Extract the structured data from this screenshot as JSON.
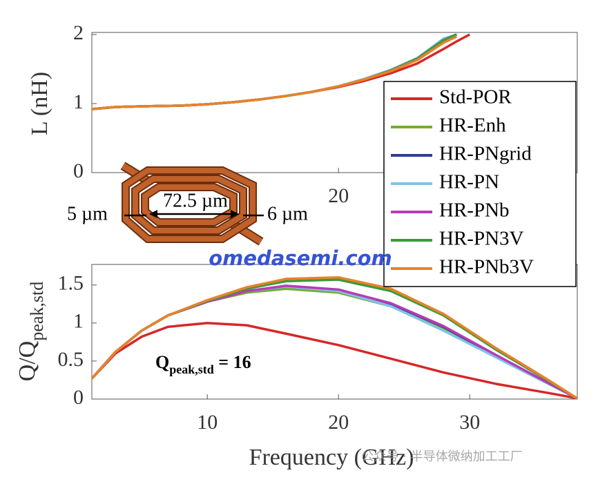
{
  "chart_data": [
    {
      "type": "line",
      "ylabel": "L (nH)",
      "x": [
        1.2,
        3,
        5,
        8,
        10,
        12,
        14,
        16,
        18,
        20,
        22,
        24,
        26,
        28,
        29,
        30
      ],
      "xlim": [
        1.2,
        38.2
      ],
      "xticks": [
        20
      ],
      "ylim": [
        0,
        2.03
      ],
      "yticks": [
        0,
        1,
        2
      ],
      "legend": "upper right",
      "series": [
        {
          "name": "Std-POR",
          "color": "#d62728",
          "values": [
            0.92,
            0.95,
            0.96,
            0.97,
            0.99,
            1.02,
            1.06,
            1.11,
            1.17,
            1.24,
            1.33,
            1.44,
            1.58,
            1.79,
            1.9,
            2.0
          ]
        },
        {
          "name": "HR-Enh",
          "color": "#77ac30",
          "values": [
            0.92,
            0.95,
            0.96,
            0.97,
            0.99,
            1.02,
            1.06,
            1.11,
            1.17,
            1.25,
            1.35,
            1.48,
            1.65,
            1.92,
            2.0,
            null
          ]
        },
        {
          "name": "HR-PNgrid",
          "color": "#2e3e8f",
          "values": [
            0.92,
            0.95,
            0.96,
            0.97,
            0.99,
            1.02,
            1.06,
            1.11,
            1.17,
            1.25,
            1.35,
            1.48,
            1.65,
            1.92,
            2.0,
            null
          ]
        },
        {
          "name": "HR-PN",
          "color": "#7ec3ea",
          "values": [
            0.92,
            0.95,
            0.96,
            0.97,
            0.99,
            1.02,
            1.06,
            1.11,
            1.17,
            1.25,
            1.36,
            1.49,
            1.66,
            1.94,
            2.0,
            null
          ]
        },
        {
          "name": "HR-PNb",
          "color": "#b83ab8",
          "values": [
            0.92,
            0.95,
            0.96,
            0.97,
            0.99,
            1.02,
            1.06,
            1.11,
            1.17,
            1.25,
            1.35,
            1.48,
            1.65,
            1.92,
            2.0,
            null
          ]
        },
        {
          "name": "HR-PN3V",
          "color": "#3c9a3c",
          "values": [
            0.92,
            0.95,
            0.96,
            0.97,
            0.99,
            1.02,
            1.06,
            1.11,
            1.17,
            1.25,
            1.35,
            1.48,
            1.65,
            1.92,
            2.0,
            null
          ]
        },
        {
          "name": "HR-PNb3V",
          "color": "#e8822a",
          "values": [
            0.92,
            0.95,
            0.96,
            0.97,
            0.99,
            1.02,
            1.06,
            1.11,
            1.17,
            1.25,
            1.35,
            1.47,
            1.63,
            1.88,
            1.97,
            null
          ]
        }
      ]
    },
    {
      "type": "line",
      "xlabel": "Frequency (GHz)",
      "ylabel": {
        "main": "Q/Q",
        "sub": "peak,std"
      },
      "annotation": {
        "main": "Q",
        "sub": "peak,std",
        "rest": " = 16"
      },
      "x": [
        1.2,
        3,
        5,
        7,
        10,
        13,
        16,
        20,
        24,
        28,
        32,
        36,
        38.2
      ],
      "xlim": [
        1.2,
        38.2
      ],
      "xticks": [
        10,
        20,
        30
      ],
      "ylim": [
        0,
        1.77
      ],
      "yticks": [
        0,
        0.5,
        1,
        1.5
      ],
      "series": [
        {
          "color": "#d62728",
          "values": [
            0.27,
            0.6,
            0.82,
            0.95,
            1.0,
            0.97,
            0.86,
            0.71,
            0.53,
            0.35,
            0.2,
            0.08,
            0.01
          ]
        },
        {
          "color": "#77ac30",
          "values": [
            0.27,
            0.62,
            0.9,
            1.1,
            1.28,
            1.4,
            1.45,
            1.4,
            1.22,
            0.92,
            0.55,
            0.2,
            0.01
          ]
        },
        {
          "color": "#2e3e8f",
          "values": [
            0.27,
            0.62,
            0.9,
            1.1,
            1.28,
            1.42,
            1.48,
            1.43,
            1.25,
            0.95,
            0.57,
            0.21,
            0.01
          ]
        },
        {
          "color": "#7ec3ea",
          "values": [
            0.27,
            0.62,
            0.9,
            1.1,
            1.28,
            1.42,
            1.48,
            1.42,
            1.22,
            0.9,
            0.55,
            0.2,
            0.01
          ]
        },
        {
          "color": "#b83ab8",
          "values": [
            0.27,
            0.62,
            0.9,
            1.1,
            1.28,
            1.42,
            1.49,
            1.44,
            1.26,
            0.96,
            0.58,
            0.21,
            0.01
          ]
        },
        {
          "color": "#3c9a3c",
          "values": [
            0.27,
            0.62,
            0.9,
            1.1,
            1.29,
            1.45,
            1.55,
            1.57,
            1.42,
            1.1,
            0.65,
            0.24,
            0.01
          ]
        },
        {
          "color": "#e8822a",
          "values": [
            0.27,
            0.62,
            0.9,
            1.1,
            1.3,
            1.47,
            1.58,
            1.6,
            1.45,
            1.12,
            0.67,
            0.25,
            0.01
          ]
        }
      ]
    }
  ],
  "inset": {
    "inner": "72.5 µm",
    "left": "5 µm",
    "right": "6 µm"
  },
  "watermarks": [
    "omedasemi.com",
    "公众号 · 半导体微纳加工工厂"
  ]
}
